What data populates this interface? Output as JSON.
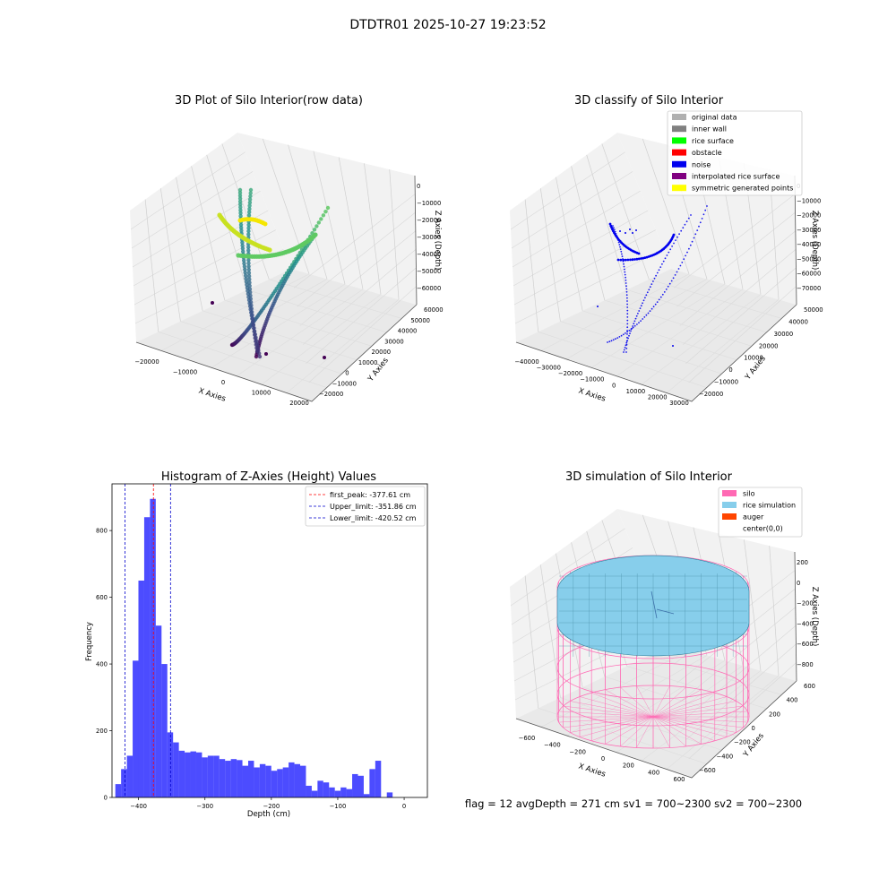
{
  "figure": {
    "suptitle": "DTDTR01 2025-10-27 19:23:52",
    "footer": "flag = 12  avgDepth = 271 cm  sv1 = 700~2300  sv2 = 700~2300"
  },
  "chart_data": [
    {
      "type": "scatter3d",
      "title": "3D Plot of Silo Interior(row data)",
      "xlabel": "X Axies",
      "ylabel": "Y Axies",
      "zlabel": "Z Axies (Depth)",
      "x_ticks": [
        "−20000",
        "−10000",
        "0",
        "10000",
        "20000"
      ],
      "y_ticks": [
        "−20000",
        "−10000",
        "0",
        "10000",
        "20000",
        "30000",
        "40000",
        "50000",
        "60000"
      ],
      "z_ticks": [
        "0",
        "−10000",
        "−20000",
        "−30000",
        "−40000",
        "−50000",
        "−60000"
      ],
      "colormap": "viridis",
      "colors": {
        "low": "#440154",
        "mid": "#3b9d8b",
        "high": "#5ec962",
        "top": "#c8e020",
        "yellow": "#f5e600"
      }
    },
    {
      "type": "scatter3d",
      "title": "3D classify of Silo Interior",
      "xlabel": "X Axies",
      "ylabel": "Y Axies",
      "zlabel": "Z Axies (Depth)",
      "x_ticks": [
        "−40000",
        "−30000",
        "−20000",
        "−10000",
        "0",
        "10000",
        "20000",
        "30000"
      ],
      "y_ticks": [
        "−20000",
        "−10000",
        "0",
        "10000",
        "20000",
        "30000",
        "40000",
        "50000"
      ],
      "z_ticks": [
        "0",
        "−10000",
        "−20000",
        "−30000",
        "−40000",
        "−50000",
        "−60000",
        "−70000"
      ],
      "legend_position": "top-right",
      "legend": [
        {
          "label": "original data",
          "color": "#b0b0b0"
        },
        {
          "label": "inner wall",
          "color": "#808080"
        },
        {
          "label": "rice surface",
          "color": "#00ff00"
        },
        {
          "label": "obstacle",
          "color": "#ff0000"
        },
        {
          "label": "noise",
          "color": "#0000ee"
        },
        {
          "label": "interpolated rice surface",
          "color": "#800080"
        },
        {
          "label": "symmetric generated points",
          "color": "#ffff00"
        }
      ]
    },
    {
      "type": "histogram",
      "title": "Histogram of Z-Axies (Height) Values",
      "xlabel": "Depth (cm)",
      "ylabel": "Frequency",
      "color": "#0000ff",
      "bin_start": -435,
      "bin_width": 8.7,
      "counts": [
        40,
        85,
        125,
        410,
        650,
        840,
        895,
        515,
        400,
        195,
        165,
        140,
        135,
        138,
        135,
        120,
        125,
        125,
        115,
        110,
        115,
        112,
        95,
        110,
        90,
        100,
        95,
        80,
        85,
        90,
        105,
        100,
        95,
        35,
        20,
        50,
        45,
        30,
        20,
        30,
        25,
        70,
        65,
        10,
        85,
        110,
        0,
        15
      ],
      "xlim": [
        -440,
        35
      ],
      "ylim": [
        0,
        940
      ],
      "x_ticks": [
        {
          "v": -400,
          "label": "−400"
        },
        {
          "v": -300,
          "label": "−300"
        },
        {
          "v": -200,
          "label": "−200"
        },
        {
          "v": -100,
          "label": "−100"
        },
        {
          "v": 0,
          "label": "0"
        }
      ],
      "y_ticks": [
        {
          "v": 0,
          "label": "0"
        },
        {
          "v": 200,
          "label": "200"
        },
        {
          "v": 400,
          "label": "400"
        },
        {
          "v": 600,
          "label": "600"
        },
        {
          "v": 800,
          "label": "800"
        }
      ],
      "legend_position": "top-right",
      "vlines": [
        {
          "label": "first_peak: -377.61 cm",
          "value": -377.61,
          "color": "#ff0000"
        },
        {
          "label": "Upper_limit: -351.86 cm",
          "value": -351.86,
          "color": "#0000cc"
        },
        {
          "label": "Lower_limit: -420.52 cm",
          "value": -420.52,
          "color": "#0000cc"
        }
      ]
    },
    {
      "type": "surface3d",
      "title": "3D simulation of Silo Interior",
      "xlabel": "X Axies",
      "ylabel": "Y Axies",
      "zlabel": "Z Axies (Depth)",
      "x_ticks": [
        "−600",
        "−400",
        "−200",
        "0",
        "200",
        "400",
        "600"
      ],
      "y_ticks": [
        "−600",
        "−400",
        "−200",
        "0",
        "200",
        "400",
        "600"
      ],
      "z_ticks": [
        "200",
        "0",
        "−200",
        "−400",
        "−600",
        "−800"
      ],
      "legend_position": "top-right",
      "legend": [
        {
          "label": "silo",
          "color": "#ff69b4"
        },
        {
          "label": "rice simulation",
          "color": "#87ceeb"
        },
        {
          "label": "auger",
          "color": "#ff4500"
        },
        {
          "label": "center(0,0)",
          "color": "#ffffff"
        }
      ]
    }
  ]
}
